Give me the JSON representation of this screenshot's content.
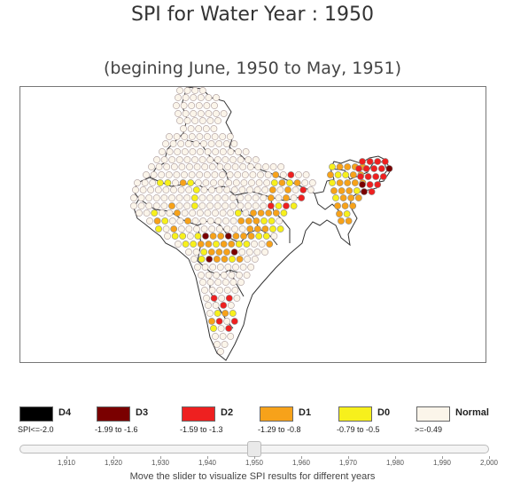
{
  "title": "SPI for Water Year : 1950",
  "subtitle": "(begining June, 1950 to May, 1951)",
  "legend": [
    {
      "code": "D4",
      "range": "SPI<=-2.0",
      "color": "#000000"
    },
    {
      "code": "D3",
      "range": "-1.99 to -1.6",
      "color": "#7a0000"
    },
    {
      "code": "D2",
      "range": "-1.59 to -1.3",
      "color": "#ee2020"
    },
    {
      "code": "D1",
      "range": "-1.29 to -0.8",
      "color": "#f7a21a"
    },
    {
      "code": "D0",
      "range": "-0.79 to -0.5",
      "color": "#f7f01c"
    },
    {
      "code": "Normal",
      "range": ">=-0.49",
      "color": "#fbf5ea"
    }
  ],
  "slider": {
    "value": 1950,
    "min": 1900,
    "max": 2000,
    "ticks": [
      "1,910",
      "1,920",
      "1,930",
      "1,940",
      "1,950",
      "1,960",
      "1,970",
      "1,980",
      "1,990",
      "2,000"
    ],
    "caption": "Move the slider to visualize SPI results for different years"
  }
}
